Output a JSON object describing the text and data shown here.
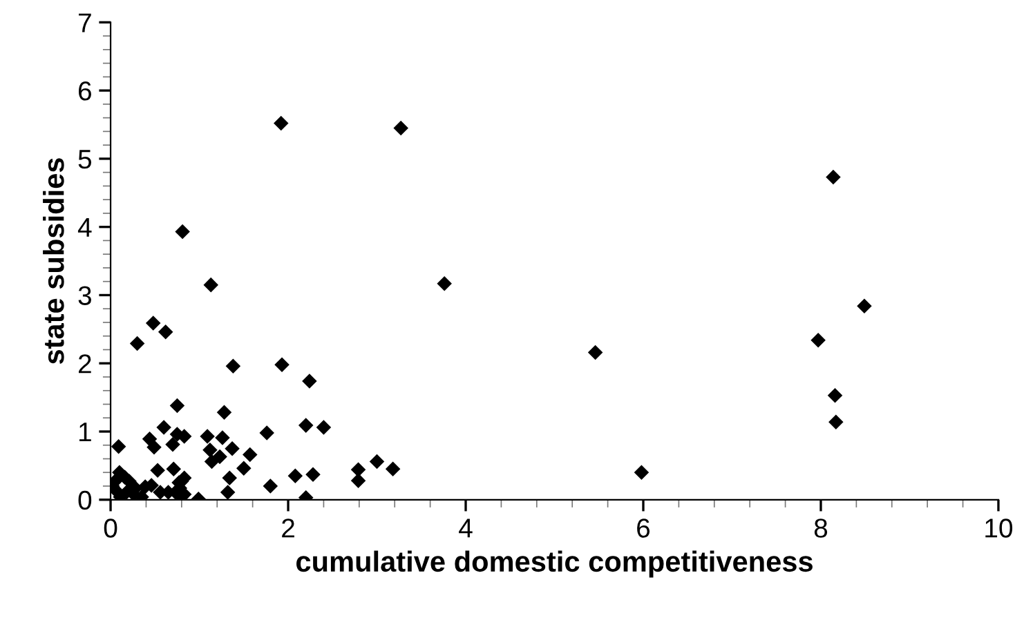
{
  "chart_data": {
    "type": "scatter",
    "xlabel": "cumulative domestic competitiveness",
    "ylabel": "state subsidies",
    "marker": "diamond",
    "grid": false,
    "legend": false,
    "series": [
      {
        "color": "#000000",
        "x": [
          1.92,
          3.27,
          0.81,
          1.13,
          3.76,
          0.48,
          0.62,
          0.3,
          8.14,
          8.49,
          7.97,
          5.46,
          8.16,
          8.17,
          5.98,
          2.4,
          3.0,
          2.79,
          3.18,
          2.79,
          1.38,
          1.93,
          2.24,
          0.75,
          1.28,
          0.6,
          0.44,
          0.49,
          0.75,
          0.83,
          0.7,
          0.09,
          1.09,
          1.26,
          1.12,
          1.23,
          1.37,
          1.14,
          1.57,
          1.5,
          1.76,
          2.2,
          1.34,
          1.32,
          1.8,
          2.08,
          2.28,
          2.2,
          0.53,
          0.71,
          0.99,
          0.1,
          0.16,
          0.21,
          0.28,
          0.05,
          0.08,
          0.11,
          0.18,
          0.26,
          0.39,
          0.46,
          0.56,
          0.65,
          0.73,
          0.78,
          0.8,
          0.83,
          0.77,
          0.83,
          0.8,
          0.35,
          0.02
        ],
        "values": [
          5.52,
          5.45,
          3.93,
          3.15,
          3.17,
          2.59,
          2.46,
          2.29,
          4.73,
          2.84,
          2.34,
          2.16,
          1.53,
          1.14,
          0.4,
          1.06,
          0.56,
          0.44,
          0.45,
          0.28,
          1.96,
          1.98,
          1.74,
          1.38,
          1.28,
          1.06,
          0.89,
          0.77,
          0.96,
          0.93,
          0.81,
          0.78,
          0.93,
          0.91,
          0.73,
          0.63,
          0.75,
          0.56,
          0.66,
          0.46,
          0.98,
          1.09,
          0.32,
          0.11,
          0.2,
          0.35,
          0.37,
          0.03,
          0.43,
          0.45,
          0.01,
          0.4,
          0.33,
          0.27,
          0.17,
          0.27,
          0.11,
          0.04,
          0.11,
          0.08,
          0.19,
          0.21,
          0.11,
          0.11,
          0.11,
          0.17,
          0.27,
          0.32,
          0.25,
          0.08,
          0.04,
          0.04,
          0.2
        ]
      }
    ],
    "xlim": [
      0,
      10
    ],
    "ylim": [
      0,
      7
    ],
    "xticks": [
      0,
      {
        "value": 0.4,
        "label": null
      },
      {
        "value": 0.8,
        "label": null
      },
      {
        "value": 1.2,
        "label": null
      },
      {
        "value": 1.6,
        "label": null
      },
      2,
      {
        "value": 2.4,
        "label": null
      },
      {
        "value": 2.8,
        "label": null
      },
      {
        "value": 3.2,
        "label": null
      },
      {
        "value": 3.6,
        "label": null
      },
      4,
      {
        "value": 4.4,
        "label": null
      },
      {
        "value": 4.8,
        "label": null
      },
      {
        "value": 5.2,
        "label": null
      },
      {
        "value": 5.6,
        "label": null
      },
      6,
      {
        "value": 6.4,
        "label": null
      },
      {
        "value": 6.8,
        "label": null
      },
      {
        "value": 7.2,
        "label": null
      },
      {
        "value": 7.6,
        "label": null
      },
      8,
      {
        "value": 8.4,
        "label": null
      },
      {
        "value": 8.8,
        "label": null
      },
      {
        "value": 9.2,
        "label": null
      },
      {
        "value": 9.6,
        "label": null
      },
      10
    ],
    "yticks": [
      0,
      {
        "value": 0.2,
        "label": null
      },
      {
        "value": 0.4,
        "label": null
      },
      {
        "value": 0.6,
        "label": null
      },
      {
        "value": 0.8,
        "label": null
      },
      1,
      {
        "value": 1.2,
        "label": null
      },
      {
        "value": 1.4,
        "label": null
      },
      {
        "value": 1.6,
        "label": null
      },
      {
        "value": 1.8,
        "label": null
      },
      2,
      {
        "value": 2.2,
        "label": null
      },
      {
        "value": 2.4,
        "label": null
      },
      {
        "value": 2.6,
        "label": null
      },
      {
        "value": 2.8,
        "label": null
      },
      3,
      {
        "value": 3.2,
        "label": null
      },
      {
        "value": 3.4,
        "label": null
      },
      {
        "value": 3.6,
        "label": null
      },
      {
        "value": 3.8,
        "label": null
      },
      4,
      {
        "value": 4.2,
        "label": null
      },
      {
        "value": 4.4,
        "label": null
      },
      {
        "value": 4.6,
        "label": null
      },
      {
        "value": 4.8,
        "label": null
      },
      5,
      {
        "value": 5.2,
        "label": null
      },
      {
        "value": 5.4,
        "label": null
      },
      {
        "value": 5.6,
        "label": null
      },
      {
        "value": 5.8,
        "label": null
      },
      6,
      {
        "value": 6.2,
        "label": null
      },
      {
        "value": 6.4,
        "label": null
      },
      {
        "value": 6.6,
        "label": null
      },
      {
        "value": 6.8,
        "label": null
      },
      7
    ]
  }
}
